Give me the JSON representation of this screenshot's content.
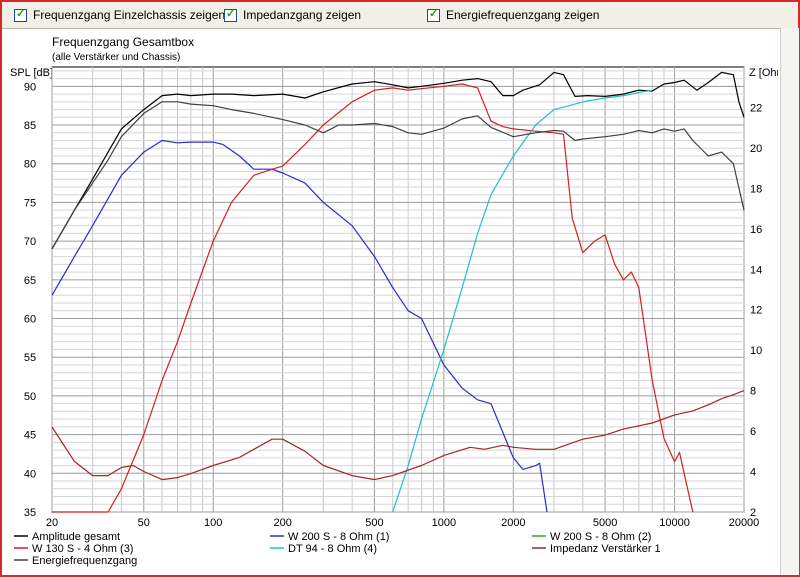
{
  "toolbar": {
    "checkboxes": [
      {
        "label": "Frequenzgang Einzelchassis zeigen",
        "checked": true
      },
      {
        "label": "Impedanzgang zeigen",
        "checked": true
      },
      {
        "label": "Energiefrequenzgang zeigen",
        "checked": true
      }
    ]
  },
  "chart_data": {
    "type": "line",
    "title": "Frequenzgang Gesamtbox",
    "subtitle": "(alle Verstärker und Chassis)",
    "ylabel": "SPL [dB]",
    "y2label": "Z [Ohm]",
    "xscale": "log",
    "xlim": [
      20,
      20000
    ],
    "ylim": [
      35,
      92.5
    ],
    "y2lim": [
      2,
      24
    ],
    "grid": true,
    "x_ticks": [
      "20",
      "50",
      "100",
      "200",
      "500",
      "1000",
      "2000",
      "5000",
      "10000",
      "20000"
    ],
    "y_ticks": [
      "35",
      "40",
      "45",
      "50",
      "55",
      "60",
      "65",
      "70",
      "75",
      "80",
      "85",
      "90"
    ],
    "y2_ticks": [
      "2",
      "4",
      "6",
      "8",
      "10",
      "12",
      "14",
      "16",
      "18",
      "20",
      "22"
    ],
    "legend_position": "bottom",
    "series": [
      {
        "name": "Amplitude gesamt",
        "color": "#000000",
        "axis": "left",
        "points": [
          [
            20,
            69
          ],
          [
            25,
            74
          ],
          [
            30,
            78
          ],
          [
            35,
            81.5
          ],
          [
            40,
            84.5
          ],
          [
            50,
            87
          ],
          [
            60,
            88.8
          ],
          [
            70,
            89
          ],
          [
            80,
            88.8
          ],
          [
            100,
            89
          ],
          [
            120,
            89
          ],
          [
            150,
            88.8
          ],
          [
            200,
            89
          ],
          [
            250,
            88.5
          ],
          [
            300,
            89.3
          ],
          [
            400,
            90.3
          ],
          [
            500,
            90.6
          ],
          [
            600,
            90.2
          ],
          [
            700,
            89.8
          ],
          [
            800,
            90
          ],
          [
            1000,
            90.4
          ],
          [
            1200,
            90.8
          ],
          [
            1400,
            91
          ],
          [
            1600,
            90.6
          ],
          [
            1800,
            88.8
          ],
          [
            2000,
            88.8
          ],
          [
            2200,
            89.5
          ],
          [
            2600,
            90.2
          ],
          [
            3000,
            91.8
          ],
          [
            3300,
            91.5
          ],
          [
            3700,
            88.7
          ],
          [
            4200,
            88.8
          ],
          [
            5000,
            88.7
          ],
          [
            6000,
            89
          ],
          [
            7000,
            89.5
          ],
          [
            8000,
            89.4
          ],
          [
            9000,
            90.3
          ],
          [
            10000,
            90.5
          ],
          [
            11000,
            90.8
          ],
          [
            12500,
            89.5
          ],
          [
            14000,
            90.5
          ],
          [
            16000,
            91.8
          ],
          [
            18000,
            91.5
          ],
          [
            19000,
            88
          ],
          [
            20000,
            86
          ]
        ]
      },
      {
        "name": "W 200 S - 8 Ohm (1)",
        "color": "#2a2ad0",
        "axis": "left",
        "points": [
          [
            20,
            63
          ],
          [
            25,
            68
          ],
          [
            30,
            72
          ],
          [
            35,
            75.5
          ],
          [
            40,
            78.5
          ],
          [
            50,
            81.5
          ],
          [
            60,
            83
          ],
          [
            70,
            82.7
          ],
          [
            80,
            82.8
          ],
          [
            100,
            82.8
          ],
          [
            110,
            82.5
          ],
          [
            130,
            81
          ],
          [
            150,
            79.3
          ],
          [
            180,
            79.3
          ],
          [
            200,
            78.8
          ],
          [
            250,
            77.5
          ],
          [
            300,
            75
          ],
          [
            400,
            72
          ],
          [
            500,
            68
          ],
          [
            600,
            64
          ],
          [
            700,
            61
          ],
          [
            800,
            60
          ],
          [
            1000,
            54
          ],
          [
            1200,
            51
          ],
          [
            1400,
            49.5
          ],
          [
            1600,
            49
          ],
          [
            2000,
            42
          ],
          [
            2200,
            40.5
          ],
          [
            2500,
            41
          ],
          [
            2600,
            41.3
          ],
          [
            2800,
            35
          ]
        ]
      },
      {
        "name": "W 200 S - 8 Ohm (2)",
        "color": "#2ab02a",
        "axis": "left",
        "points": []
      },
      {
        "name": "W 130 S - 4 Ohm (3)",
        "color": "#d42020",
        "axis": "left",
        "points": [
          [
            20,
            35
          ],
          [
            35,
            35
          ],
          [
            40,
            38
          ],
          [
            50,
            45
          ],
          [
            60,
            52
          ],
          [
            70,
            57
          ],
          [
            80,
            62
          ],
          [
            100,
            70
          ],
          [
            120,
            75
          ],
          [
            150,
            78.5
          ],
          [
            180,
            79.3
          ],
          [
            200,
            79.7
          ],
          [
            250,
            82.5
          ],
          [
            300,
            85
          ],
          [
            400,
            88
          ],
          [
            500,
            89.5
          ],
          [
            600,
            89.8
          ],
          [
            700,
            89.5
          ],
          [
            800,
            89.7
          ],
          [
            1000,
            90
          ],
          [
            1200,
            90.3
          ],
          [
            1400,
            89.8
          ],
          [
            1600,
            85.5
          ],
          [
            1800,
            84.8
          ],
          [
            2000,
            84.5
          ],
          [
            2500,
            84.2
          ],
          [
            3000,
            84
          ],
          [
            3300,
            83.8
          ],
          [
            3600,
            73
          ],
          [
            4000,
            68.5
          ],
          [
            4500,
            70
          ],
          [
            5000,
            70.8
          ],
          [
            5500,
            67
          ],
          [
            6000,
            65
          ],
          [
            6500,
            66
          ],
          [
            7000,
            64
          ],
          [
            8000,
            52
          ],
          [
            9000,
            44.5
          ],
          [
            10000,
            41.5
          ],
          [
            10500,
            42.7
          ],
          [
            11000,
            40
          ],
          [
            12000,
            35
          ]
        ]
      },
      {
        "name": "DT 94 - 8 Ohm (4)",
        "color": "#20c0c8",
        "axis": "left",
        "points": [
          [
            600,
            35
          ],
          [
            700,
            41
          ],
          [
            800,
            47
          ],
          [
            1000,
            56
          ],
          [
            1200,
            64
          ],
          [
            1400,
            71
          ],
          [
            1600,
            76
          ],
          [
            2000,
            81
          ],
          [
            2500,
            85
          ],
          [
            3000,
            87
          ],
          [
            3500,
            87.5
          ],
          [
            4000,
            88
          ],
          [
            5000,
            88.5
          ],
          [
            6000,
            88.8
          ],
          [
            7000,
            89.2
          ],
          [
            8000,
            89.5
          ]
        ]
      },
      {
        "name": "Impedanz Verstärker 1",
        "color": "#a02828",
        "axis": "right",
        "points": [
          [
            20,
            6.2
          ],
          [
            25,
            4.5
          ],
          [
            30,
            3.8
          ],
          [
            35,
            3.8
          ],
          [
            40,
            4.2
          ],
          [
            45,
            4.3
          ],
          [
            50,
            4
          ],
          [
            60,
            3.6
          ],
          [
            70,
            3.7
          ],
          [
            80,
            3.9
          ],
          [
            100,
            4.3
          ],
          [
            130,
            4.7
          ],
          [
            150,
            5.1
          ],
          [
            180,
            5.6
          ],
          [
            200,
            5.6
          ],
          [
            250,
            5
          ],
          [
            300,
            4.3
          ],
          [
            400,
            3.8
          ],
          [
            500,
            3.6
          ],
          [
            600,
            3.8
          ],
          [
            800,
            4.3
          ],
          [
            1000,
            4.8
          ],
          [
            1300,
            5.2
          ],
          [
            1500,
            5.1
          ],
          [
            1800,
            5.3
          ],
          [
            2000,
            5.2
          ],
          [
            2500,
            5.1
          ],
          [
            3000,
            5.1
          ],
          [
            4000,
            5.6
          ],
          [
            5000,
            5.8
          ],
          [
            6000,
            6.1
          ],
          [
            8000,
            6.4
          ],
          [
            10000,
            6.8
          ],
          [
            12000,
            7
          ],
          [
            14000,
            7.3
          ],
          [
            16000,
            7.6
          ],
          [
            18000,
            7.8
          ],
          [
            20000,
            8
          ]
        ]
      },
      {
        "name": "Energiefrequenzgang",
        "color": "#404040",
        "axis": "left",
        "points": [
          [
            20,
            69
          ],
          [
            25,
            74
          ],
          [
            30,
            77.5
          ],
          [
            35,
            80.5
          ],
          [
            40,
            83.5
          ],
          [
            50,
            86.5
          ],
          [
            60,
            88
          ],
          [
            70,
            88
          ],
          [
            80,
            87.7
          ],
          [
            100,
            87.5
          ],
          [
            120,
            87
          ],
          [
            150,
            86.5
          ],
          [
            200,
            85.7
          ],
          [
            250,
            85
          ],
          [
            300,
            84
          ],
          [
            350,
            85
          ],
          [
            400,
            85
          ],
          [
            500,
            85.2
          ],
          [
            600,
            84.8
          ],
          [
            700,
            84
          ],
          [
            800,
            83.8
          ],
          [
            1000,
            84.6
          ],
          [
            1200,
            85.8
          ],
          [
            1400,
            86.2
          ],
          [
            1600,
            84.7
          ],
          [
            2000,
            83.5
          ],
          [
            2500,
            84
          ],
          [
            3000,
            84.3
          ],
          [
            3300,
            84.2
          ],
          [
            3700,
            83
          ],
          [
            4000,
            83.2
          ],
          [
            5000,
            83.5
          ],
          [
            6000,
            83.8
          ],
          [
            7000,
            84.3
          ],
          [
            8000,
            84
          ],
          [
            9000,
            84.5
          ],
          [
            10000,
            84.2
          ],
          [
            11000,
            84.5
          ],
          [
            12000,
            83
          ],
          [
            14000,
            81
          ],
          [
            16000,
            81.5
          ],
          [
            18000,
            80
          ],
          [
            20000,
            74
          ]
        ]
      }
    ]
  }
}
